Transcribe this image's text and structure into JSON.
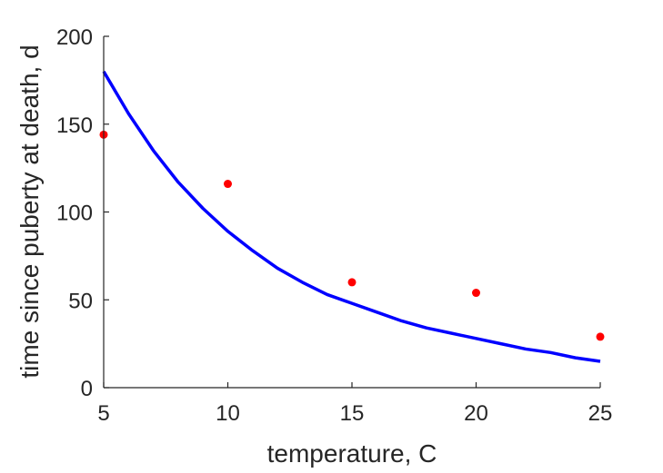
{
  "chart_data": {
    "type": "scatter",
    "xlabel": "temperature, C",
    "ylabel": "time since puberty at death, d",
    "xlim": [
      5,
      25
    ],
    "ylim": [
      0,
      200
    ],
    "xticks": [
      "5",
      "10",
      "15",
      "20",
      "25"
    ],
    "yticks": [
      "0",
      "50",
      "100",
      "150",
      "200"
    ],
    "grid": false,
    "series": [
      {
        "kind": "scatter",
        "color": "#ff0000",
        "x": [
          5,
          10,
          15,
          20,
          25
        ],
        "y": [
          144,
          116,
          60,
          54,
          29
        ]
      },
      {
        "kind": "line",
        "color": "#0000ff",
        "x": [
          5,
          6,
          7,
          8,
          9,
          10,
          11,
          12,
          13,
          14,
          15,
          16,
          17,
          18,
          19,
          20,
          21,
          22,
          23,
          24,
          25
        ],
        "y": [
          180,
          156,
          135,
          117,
          102,
          89,
          78,
          68,
          60,
          53,
          48,
          43,
          38,
          34,
          31,
          28,
          25,
          22,
          20,
          17,
          15
        ]
      }
    ]
  }
}
